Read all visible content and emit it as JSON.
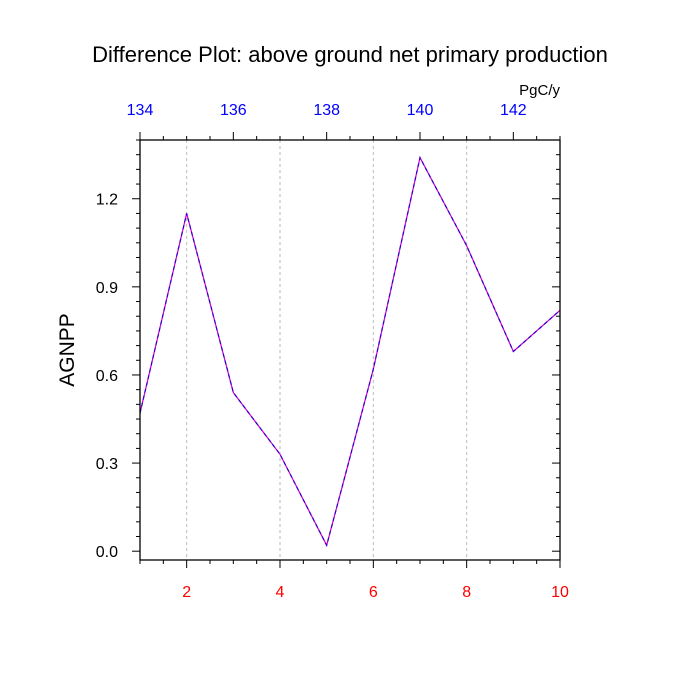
{
  "chart_data": {
    "type": "line",
    "title": "Difference Plot: above ground net primary production",
    "ylabel": "AGNPP",
    "units": "PgC/y",
    "xlim": [
      1,
      10
    ],
    "ylim": [
      -0.03,
      1.4
    ],
    "x": [
      1,
      2,
      3,
      4,
      5,
      6,
      7,
      8,
      9,
      10
    ],
    "series": [
      {
        "name": "difference",
        "values": [
          0.47,
          1.15,
          0.54,
          0.33,
          0.02,
          0.62,
          1.34,
          1.04,
          0.68,
          0.82
        ]
      }
    ],
    "bottom_axis": {
      "ticks": [
        2,
        4,
        6,
        8,
        10
      ],
      "labels": [
        "2",
        "4",
        "6",
        "8",
        "10"
      ]
    },
    "left_axis": {
      "ticks": [
        0,
        0.3,
        0.6,
        0.9,
        1.2
      ],
      "labels": [
        "0.0",
        "0.3",
        "0.6",
        "0.9",
        "1.2"
      ]
    },
    "top_axis": {
      "ticks": [
        134,
        136,
        138,
        140,
        142
      ],
      "labels": [
        "134",
        "136",
        "138",
        "140",
        "142"
      ],
      "range": [
        134,
        143
      ]
    },
    "grid": "vertical-dashed",
    "colors": {
      "line": "#3300cc",
      "bottom_ticks": "#ff0000",
      "top_ticks": "#0000ff",
      "grid": "#bbbbbb"
    }
  }
}
